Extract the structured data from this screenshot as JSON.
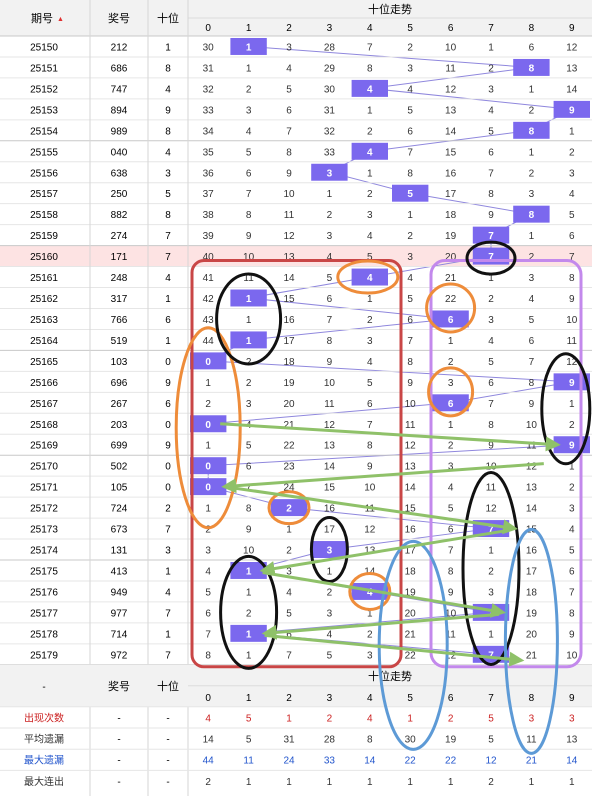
{
  "header": {
    "issue_label": "期号",
    "sort_arrow": "▲",
    "prize_label": "奖号",
    "tens_label": "十位",
    "trend_label": "十位走势",
    "digits": [
      "0",
      "1",
      "2",
      "3",
      "4",
      "5",
      "6",
      "7",
      "8",
      "9"
    ]
  },
  "rows": [
    {
      "issue": "25150",
      "prize": "212",
      "tens": 1,
      "cells": [
        30,
        1,
        3,
        28,
        7,
        2,
        10,
        1,
        6,
        12
      ]
    },
    {
      "issue": "25151",
      "prize": "686",
      "tens": 8,
      "cells": [
        31,
        1,
        4,
        29,
        8,
        3,
        11,
        2,
        8,
        13
      ]
    },
    {
      "issue": "25152",
      "prize": "747",
      "tens": 4,
      "cells": [
        32,
        2,
        5,
        30,
        4,
        4,
        12,
        3,
        1,
        14
      ]
    },
    {
      "issue": "25153",
      "prize": "894",
      "tens": 9,
      "cells": [
        33,
        3,
        6,
        31,
        1,
        5,
        13,
        4,
        2,
        9
      ]
    },
    {
      "issue": "25154",
      "prize": "989",
      "tens": 8,
      "cells": [
        34,
        4,
        7,
        32,
        2,
        6,
        14,
        5,
        8,
        1
      ]
    },
    {
      "issue": "25155",
      "prize": "040",
      "tens": 4,
      "cells": [
        35,
        5,
        8,
        33,
        4,
        7,
        15,
        6,
        1,
        2
      ]
    },
    {
      "issue": "25156",
      "prize": "638",
      "tens": 3,
      "cells": [
        36,
        6,
        9,
        3,
        1,
        8,
        16,
        7,
        2,
        3
      ]
    },
    {
      "issue": "25157",
      "prize": "250",
      "tens": 5,
      "cells": [
        37,
        7,
        10,
        1,
        2,
        5,
        17,
        8,
        3,
        4
      ]
    },
    {
      "issue": "25158",
      "prize": "882",
      "tens": 8,
      "cells": [
        38,
        8,
        11,
        2,
        3,
        1,
        18,
        9,
        8,
        5
      ]
    },
    {
      "issue": "25159",
      "prize": "274",
      "tens": 7,
      "cells": [
        39,
        9,
        12,
        3,
        4,
        2,
        19,
        7,
        1,
        6
      ]
    },
    {
      "issue": "25160",
      "prize": "171",
      "tens": 7,
      "cells": [
        40,
        10,
        13,
        4,
        5,
        3,
        20,
        7,
        2,
        7
      ],
      "highlight": true
    },
    {
      "issue": "25161",
      "prize": "248",
      "tens": 4,
      "cells": [
        41,
        11,
        14,
        5,
        4,
        4,
        21,
        1,
        3,
        8
      ]
    },
    {
      "issue": "25162",
      "prize": "317",
      "tens": 1,
      "cells": [
        42,
        1,
        15,
        6,
        1,
        5,
        22,
        2,
        4,
        9
      ]
    },
    {
      "issue": "25163",
      "prize": "766",
      "tens": 6,
      "cells": [
        43,
        1,
        16,
        7,
        2,
        6,
        6,
        3,
        5,
        10
      ]
    },
    {
      "issue": "25164",
      "prize": "519",
      "tens": 1,
      "cells": [
        44,
        1,
        17,
        8,
        3,
        7,
        1,
        4,
        6,
        11
      ]
    },
    {
      "issue": "25165",
      "prize": "103",
      "tens": 0,
      "cells": [
        0,
        2,
        18,
        9,
        4,
        8,
        2,
        5,
        7,
        12
      ]
    },
    {
      "issue": "25166",
      "prize": "696",
      "tens": 9,
      "cells": [
        1,
        2,
        19,
        10,
        5,
        9,
        3,
        6,
        8,
        9
      ]
    },
    {
      "issue": "25167",
      "prize": "267",
      "tens": 6,
      "cells": [
        2,
        3,
        20,
        11,
        6,
        10,
        6,
        7,
        9,
        1
      ]
    },
    {
      "issue": "25168",
      "prize": "203",
      "tens": 0,
      "cells": [
        0,
        4,
        21,
        12,
        7,
        11,
        1,
        8,
        10,
        2
      ]
    },
    {
      "issue": "25169",
      "prize": "699",
      "tens": 9,
      "cells": [
        1,
        5,
        22,
        13,
        8,
        12,
        2,
        9,
        11,
        9
      ]
    },
    {
      "issue": "25170",
      "prize": "502",
      "tens": 0,
      "cells": [
        0,
        6,
        23,
        14,
        9,
        13,
        3,
        10,
        12,
        1
      ]
    },
    {
      "issue": "25171",
      "prize": "105",
      "tens": 0,
      "cells": [
        0,
        7,
        24,
        15,
        10,
        14,
        4,
        11,
        13,
        2
      ]
    },
    {
      "issue": "25172",
      "prize": "724",
      "tens": 2,
      "cells": [
        1,
        8,
        2,
        16,
        11,
        15,
        5,
        12,
        14,
        3
      ]
    },
    {
      "issue": "25173",
      "prize": "673",
      "tens": 7,
      "cells": [
        2,
        9,
        1,
        17,
        12,
        16,
        6,
        7,
        15,
        4
      ]
    },
    {
      "issue": "25174",
      "prize": "131",
      "tens": 3,
      "cells": [
        3,
        10,
        2,
        3,
        13,
        17,
        7,
        1,
        16,
        5
      ]
    },
    {
      "issue": "25175",
      "prize": "413",
      "tens": 1,
      "cells": [
        4,
        1,
        3,
        1,
        14,
        18,
        8,
        2,
        17,
        6
      ]
    },
    {
      "issue": "25176",
      "prize": "949",
      "tens": 4,
      "cells": [
        5,
        1,
        4,
        2,
        4,
        19,
        9,
        3,
        18,
        7
      ]
    },
    {
      "issue": "25177",
      "prize": "977",
      "tens": 7,
      "cells": [
        6,
        2,
        5,
        3,
        1,
        20,
        10,
        7,
        19,
        8
      ]
    },
    {
      "issue": "25178",
      "prize": "714",
      "tens": 1,
      "cells": [
        7,
        1,
        6,
        4,
        2,
        21,
        11,
        1,
        20,
        9
      ]
    },
    {
      "issue": "25179",
      "prize": "972",
      "tens": 7,
      "cells": [
        8,
        1,
        7,
        5,
        3,
        22,
        12,
        7,
        21,
        10
      ]
    }
  ],
  "footer": {
    "dash": "-",
    "prize_label": "奖号",
    "tens_label": "十位",
    "trend_label": "十位走势",
    "digits": [
      "0",
      "1",
      "2",
      "3",
      "4",
      "5",
      "6",
      "7",
      "8",
      "9"
    ],
    "stats": [
      {
        "label": "出现次数",
        "values": [
          4,
          5,
          1,
          2,
          4,
          1,
          2,
          5,
          3,
          3
        ],
        "color": "#cc2222"
      },
      {
        "label": "平均遗漏",
        "values": [
          14,
          5,
          31,
          28,
          8,
          30,
          19,
          5,
          11,
          13
        ],
        "color": "#333333"
      },
      {
        "label": "最大遗漏",
        "values": [
          44,
          11,
          24,
          33,
          14,
          22,
          22,
          12,
          21,
          14
        ],
        "color": "#2255cc"
      },
      {
        "label": "最大连出",
        "values": [
          2,
          1,
          1,
          1,
          1,
          1,
          1,
          2,
          1,
          1
        ],
        "color": "#333333"
      }
    ]
  },
  "colors": {
    "hit": "#7b68ee",
    "line": "#8f87dd",
    "highlight_row": "#fde3e3",
    "header_bg": "#f2f2f2",
    "red": "#c94646",
    "purple": "#c389ec",
    "orange": "#ee8c3a",
    "black": "#111111",
    "green": "#8fc169",
    "blue": "#5d9ad6"
  },
  "chart_data": {
    "type": "table",
    "title": "十位走势",
    "columns": [
      "期号",
      "奖号",
      "十位",
      "0",
      "1",
      "2",
      "3",
      "4",
      "5",
      "6",
      "7",
      "8",
      "9"
    ],
    "tens_sequence": [
      1,
      8,
      4,
      9,
      8,
      4,
      3,
      5,
      8,
      7,
      7,
      4,
      1,
      6,
      1,
      0,
      9,
      6,
      0,
      9,
      0,
      0,
      2,
      7,
      3,
      1,
      4,
      7,
      1,
      7
    ],
    "stats_rows": [
      "出现次数",
      "平均遗漏",
      "最大遗漏",
      "最大连出"
    ]
  }
}
